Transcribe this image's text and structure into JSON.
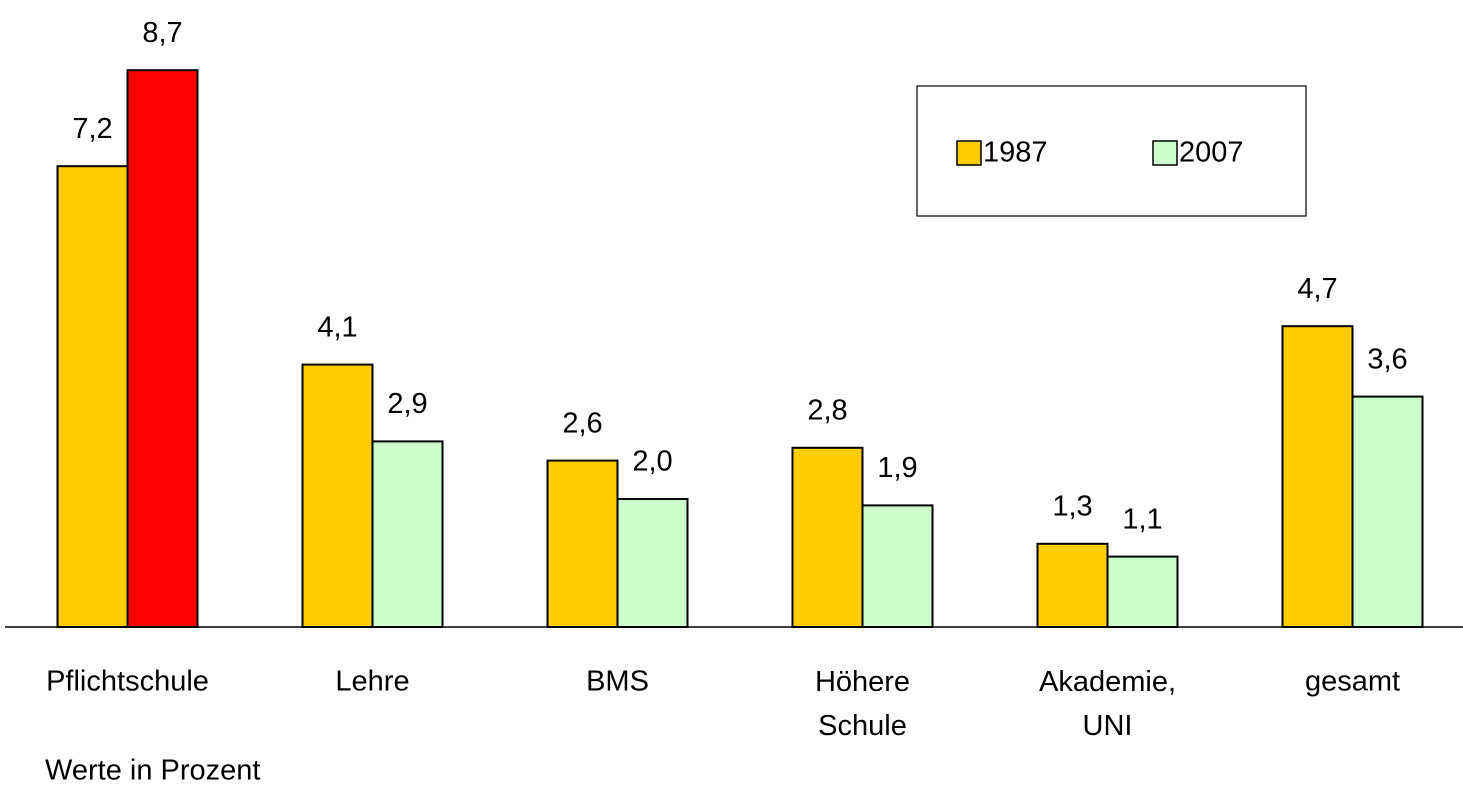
{
  "chart_data": {
    "type": "bar",
    "categories": [
      "Pflichtschule",
      "Lehre",
      "BMS",
      "Höhere Schule",
      "Akademie, UNI",
      "gesamt"
    ],
    "series": [
      {
        "name": "1987",
        "color": "#ffcc00",
        "values": [
          7.2,
          4.1,
          2.6,
          2.8,
          1.3,
          4.7
        ],
        "value_labels": [
          "7,2",
          "4,1",
          "2,6",
          "2,8",
          "1,3",
          "4,7"
        ]
      },
      {
        "name": "2007",
        "color": "#ccffcc",
        "colors": [
          "#ff0000",
          "#ccffcc",
          "#ccffcc",
          "#ccffcc",
          "#ccffcc",
          "#ccffcc"
        ],
        "values": [
          8.7,
          2.9,
          2.0,
          1.9,
          1.1,
          3.6
        ],
        "value_labels": [
          "8,7",
          "2,9",
          "2,0",
          "1,9",
          "1,1",
          "3,6"
        ]
      }
    ],
    "ylim": [
      0,
      9
    ],
    "note": "Werte in Prozent",
    "legend": "top-right"
  }
}
